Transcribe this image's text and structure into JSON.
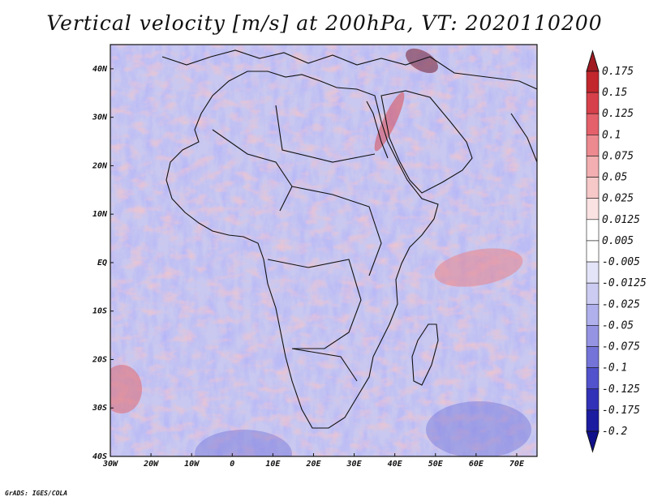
{
  "title": "Vertical velocity [m/s] at 200hPa, VT: 2020110200",
  "credit": "GrADS: IGES/COLA",
  "map": {
    "lon_range": [
      -30,
      75
    ],
    "lat_range": [
      -40,
      45
    ],
    "x_ticks": [
      "30W",
      "20W",
      "10W",
      "0",
      "10E",
      "20E",
      "30E",
      "40E",
      "50E",
      "60E",
      "70E"
    ],
    "y_ticks": [
      "40N",
      "30N",
      "20N",
      "10N",
      "EQ",
      "10S",
      "20S",
      "30S",
      "40S"
    ],
    "x_tick_values": [
      -30,
      -20,
      -10,
      0,
      10,
      20,
      30,
      40,
      50,
      60,
      70
    ],
    "y_tick_values": [
      40,
      30,
      20,
      10,
      0,
      -10,
      -20,
      -30,
      -40
    ]
  },
  "colorbar": {
    "labels": [
      "0.175",
      "0.15",
      "0.125",
      "0.1",
      "0.075",
      "0.05",
      "0.025",
      "0.0125",
      "0.005",
      "-0.005",
      "-0.0125",
      "-0.025",
      "-0.05",
      "-0.075",
      "-0.1",
      "-0.125",
      "-0.175",
      "-0.2"
    ],
    "colors": [
      "#a01a22",
      "#c1272d",
      "#d6404a",
      "#e4606a",
      "#ec8a90",
      "#f2aeb0",
      "#f6c8c8",
      "#fae2e2",
      "#ffffff",
      "#ffffff",
      "#e4e4f8",
      "#ccccf2",
      "#b0b0ec",
      "#9494e2",
      "#7474d8",
      "#5252cc",
      "#3232b8",
      "#1c1ca0",
      "#10108a"
    ]
  }
}
